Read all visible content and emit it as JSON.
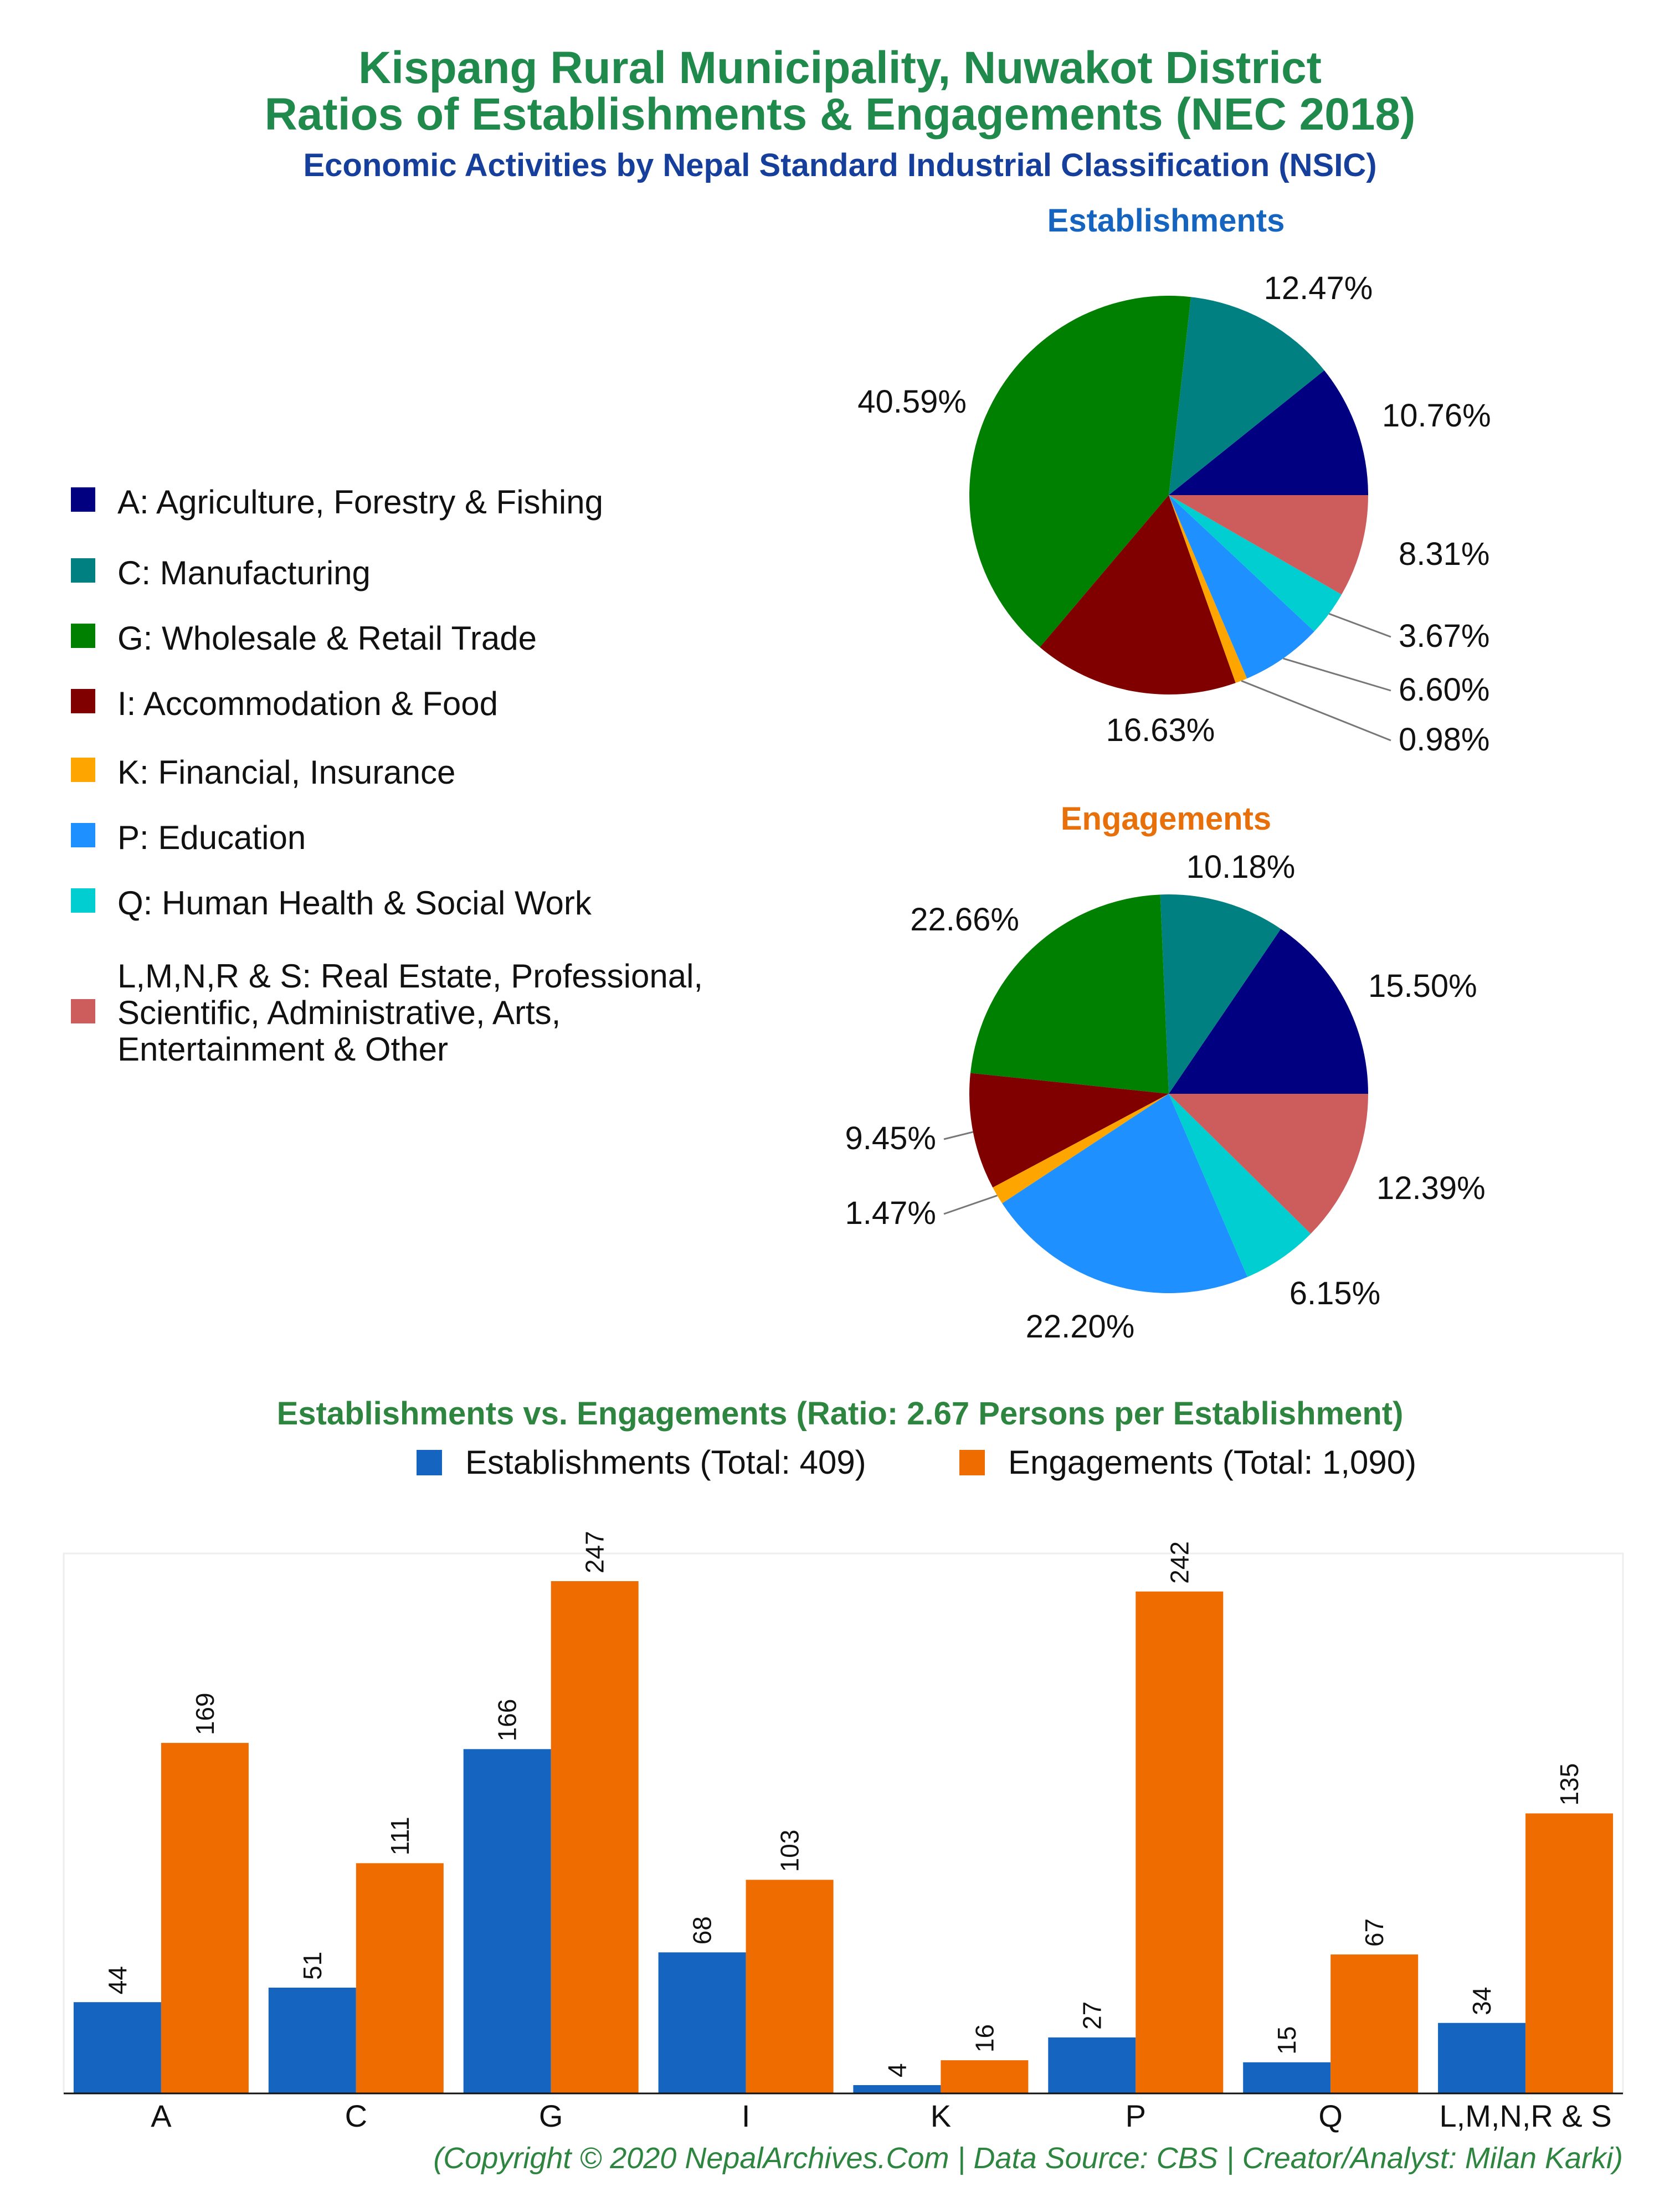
{
  "title_line1": "Kispang Rural Municipality, Nuwakot District",
  "title_line2": "Ratios of Establishments & Engagements (NEC 2018)",
  "subtitle": "Economic Activities by Nepal Standard Industrial Classification (NSIC)",
  "legend": {
    "items": [
      {
        "code": "A",
        "label": "A: Agriculture, Forestry & Fishing",
        "color": "#000080"
      },
      {
        "code": "C",
        "label": "C: Manufacturing",
        "color": "#008080"
      },
      {
        "code": "G",
        "label": "G: Wholesale & Retail Trade",
        "color": "#008000"
      },
      {
        "code": "I",
        "label": "I: Accommodation & Food",
        "color": "#800000"
      },
      {
        "code": "K",
        "label": "K: Financial, Insurance",
        "color": "#FFA500"
      },
      {
        "code": "P",
        "label": "P: Education",
        "color": "#1E90FF"
      },
      {
        "code": "Q",
        "label": "Q: Human Health & Social Work",
        "color": "#00CED1"
      },
      {
        "code": "LMNRS",
        "label": "L,M,N,R & S: Real Estate, Professional,\nScientific, Administrative, Arts,\nEntertainment & Other",
        "color": "#CD5C5C"
      }
    ]
  },
  "chart_data": [
    {
      "type": "pie",
      "title": "Establishments",
      "title_color": "#1565C0",
      "categories": [
        "A",
        "C",
        "G",
        "I",
        "K",
        "P",
        "Q",
        "L,M,N,R & S"
      ],
      "values": [
        10.76,
        12.47,
        40.59,
        16.63,
        0.98,
        6.6,
        3.67,
        8.31
      ],
      "labels": [
        "10.76%",
        "12.47%",
        "40.59%",
        "16.63%",
        "0.98%",
        "6.60%",
        "3.67%",
        "8.31%"
      ]
    },
    {
      "type": "pie",
      "title": "Engagements",
      "title_color": "#E8700A",
      "categories": [
        "A",
        "C",
        "G",
        "I",
        "K",
        "P",
        "Q",
        "L,M,N,R & S"
      ],
      "values": [
        15.5,
        10.18,
        22.66,
        9.45,
        1.47,
        22.2,
        6.15,
        12.39
      ],
      "labels": [
        "15.50%",
        "10.18%",
        "22.66%",
        "9.45%",
        "1.47%",
        "22.20%",
        "6.15%",
        "12.39%"
      ]
    },
    {
      "type": "bar",
      "title": "Establishments vs. Engagements (Ratio: 2.67 Persons per Establishment)",
      "categories": [
        "A",
        "C",
        "G",
        "I",
        "K",
        "P",
        "Q",
        "L,M,N,R & S"
      ],
      "series": [
        {
          "name": "Establishments (Total: 409)",
          "color": "#1565C0",
          "values": [
            44,
            51,
            166,
            68,
            4,
            27,
            15,
            34
          ]
        },
        {
          "name": "Engagements (Total: 1,090)",
          "color": "#EE6C00",
          "values": [
            169,
            111,
            247,
            103,
            16,
            242,
            67,
            135
          ]
        }
      ],
      "ylim": [
        0,
        270
      ],
      "grid": false,
      "legend_position": "top"
    }
  ],
  "footer": "(Copyright © 2020 NepalArchives.Com | Data Source: CBS | Creator/Analyst: Milan Karki)"
}
